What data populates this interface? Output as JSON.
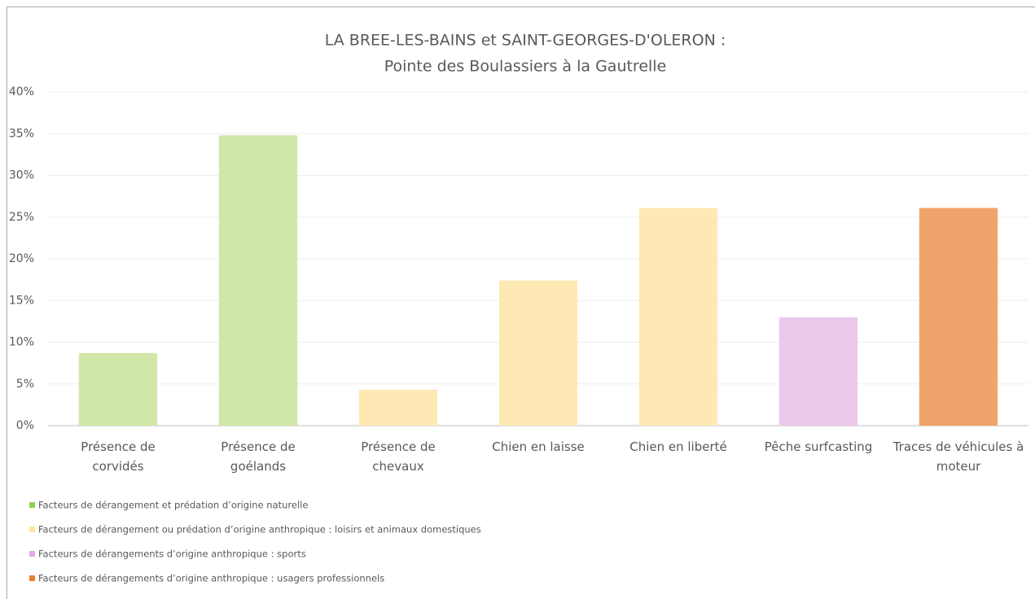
{
  "chart_data": {
    "type": "bar",
    "title": "LA BREE-LES-BAINS et SAINT-GEORGES-D'OLERON :",
    "subtitle": "Pointe des Boulassiers à la Gautrelle",
    "categories": [
      "Présence de\ncorvidés",
      "Présence de\ngoélands",
      "Présence de\nchevaux",
      "Chien en laisse",
      "Chien en liberté",
      "Pêche surfcasting",
      "Traces de véhicules à\nmoteur"
    ],
    "values": [
      8.7,
      34.8,
      4.3,
      17.4,
      26.1,
      13.0,
      26.1
    ],
    "colors": [
      "#d1e7a8",
      "#d1e7a8",
      "#fee9b4",
      "#fee9b4",
      "#fee9b4",
      "#ebc9ec",
      "#f0a46b"
    ],
    "ylim": [
      0,
      40
    ],
    "yticks": [
      {
        "value": 0,
        "label": "0%"
      },
      {
        "value": 5,
        "label": "5%"
      },
      {
        "value": 10,
        "label": "10%"
      },
      {
        "value": 15,
        "label": "15%"
      },
      {
        "value": 20,
        "label": "20%"
      },
      {
        "value": 25,
        "label": "25%"
      },
      {
        "value": 30,
        "label": "30%"
      },
      {
        "value": 35,
        "label": "35%"
      },
      {
        "value": 40,
        "label": "40%"
      }
    ],
    "grid": true,
    "legend": [
      {
        "label": "Facteurs de dérangement et prédation d’origine naturelle",
        "color": "#92d050"
      },
      {
        "label": "Facteurs de dérangement ou prédation d’origine anthropique : loisirs et animaux domestiques",
        "color": "#ffe699"
      },
      {
        "label": "Facteurs de dérangements d’origine anthropique : sports",
        "color": "#e6a8e6"
      },
      {
        "label": "Facteurs de dérangements d’origine anthropique : usagers professionnels",
        "color": "#ed7d31"
      }
    ]
  }
}
